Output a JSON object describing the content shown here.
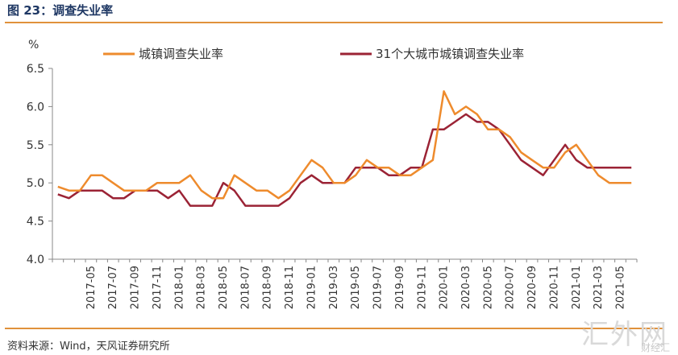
{
  "figure": {
    "title": "图 23：调查失业率",
    "source": "资料来源：Wind，天风证券研究所",
    "watermark": "汇外网",
    "watermark_sub": "财经汇"
  },
  "colors": {
    "series1": "#ee8b2d",
    "series2": "#9b2335",
    "rule": "#e0913b",
    "title": "#1f3864"
  },
  "chart_data": {
    "type": "line",
    "ylabel": "%",
    "ylim": [
      4.0,
      6.5
    ],
    "yticks": [
      "4.0",
      "4.5",
      "5.0",
      "5.5",
      "6.0",
      "6.5"
    ],
    "grid": false,
    "legend_position": "top",
    "x": [
      "2017-02",
      "2017-03",
      "2017-04",
      "2017-05",
      "2017-06",
      "2017-07",
      "2017-08",
      "2017-09",
      "2017-10",
      "2017-11",
      "2017-12",
      "2018-01",
      "2018-02",
      "2018-03",
      "2018-04",
      "2018-05",
      "2018-06",
      "2018-07",
      "2018-08",
      "2018-09",
      "2018-10",
      "2018-11",
      "2018-12",
      "2019-01",
      "2019-02",
      "2019-03",
      "2019-04",
      "2019-05",
      "2019-06",
      "2019-07",
      "2019-08",
      "2019-09",
      "2019-10",
      "2019-11",
      "2019-12",
      "2020-01",
      "2020-02",
      "2020-03",
      "2020-04",
      "2020-05",
      "2020-06",
      "2020-07",
      "2020-08",
      "2020-09",
      "2020-10",
      "2020-11",
      "2020-12",
      "2021-01",
      "2021-02",
      "2021-03",
      "2021-04",
      "2021-05",
      "2021-06"
    ],
    "xtick_labels": [
      "2017-05",
      "2017-07",
      "2017-09",
      "2017-11",
      "2018-01",
      "2018-03",
      "2018-05",
      "2018-07",
      "2018-09",
      "2018-11",
      "2019-01",
      "2019-03",
      "2019-05",
      "2019-07",
      "2019-09",
      "2019-11",
      "2020-01",
      "2020-03",
      "2020-05",
      "2020-07",
      "2020-09",
      "2020-11",
      "2021-01",
      "2021-03",
      "2021-05"
    ],
    "series": [
      {
        "name": "城镇调查失业率",
        "values": [
          4.95,
          4.9,
          4.9,
          5.1,
          5.1,
          5.0,
          4.9,
          4.9,
          4.9,
          5.0,
          5.0,
          5.0,
          5.1,
          4.9,
          4.8,
          4.8,
          5.1,
          5.0,
          4.9,
          4.9,
          4.8,
          4.9,
          5.1,
          5.3,
          5.2,
          5.0,
          5.0,
          5.1,
          5.3,
          5.2,
          5.2,
          5.1,
          5.1,
          5.2,
          5.3,
          6.2,
          5.9,
          6.0,
          5.9,
          5.7,
          5.7,
          5.6,
          5.4,
          5.3,
          5.2,
          5.2,
          5.4,
          5.5,
          5.3,
          5.1,
          5.0,
          5.0,
          5.0
        ]
      },
      {
        "name": "31个大城市城镇调查失业率",
        "values": [
          4.85,
          4.8,
          4.9,
          4.9,
          4.9,
          4.8,
          4.8,
          4.9,
          4.9,
          4.9,
          4.8,
          4.9,
          4.7,
          4.7,
          4.7,
          5.0,
          4.9,
          4.7,
          4.7,
          4.7,
          4.7,
          4.8,
          5.0,
          5.1,
          5.0,
          5.0,
          5.0,
          5.2,
          5.2,
          5.2,
          5.1,
          5.1,
          5.2,
          5.2,
          5.7,
          5.7,
          5.8,
          5.9,
          5.8,
          5.8,
          5.7,
          5.5,
          5.3,
          5.2,
          5.1,
          5.3,
          5.5,
          5.3,
          5.2,
          5.2,
          5.2,
          5.2,
          5.2
        ]
      }
    ]
  }
}
